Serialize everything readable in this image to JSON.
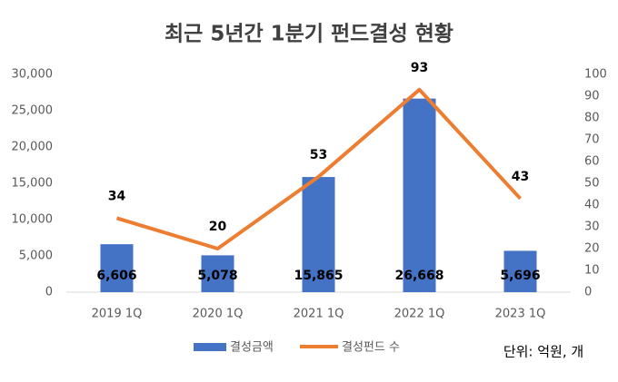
{
  "chart_data": {
    "type": "bar",
    "title": "최근 5년간 1분기 펀드결성 현황",
    "categories": [
      "2019 1Q",
      "2020 1Q",
      "2021 1Q",
      "2022 1Q",
      "2023 1Q"
    ],
    "series": [
      {
        "name": "결성금액",
        "type": "bar",
        "color": "#4472c4",
        "values": [
          6606,
          5078,
          15865,
          26668,
          5696
        ],
        "value_labels": [
          "6,606",
          "5,078",
          "15,865",
          "26,668",
          "5,696"
        ]
      },
      {
        "name": "결성펀드 수",
        "type": "line",
        "axis": "y2",
        "color": "#ed7d31",
        "values": [
          34,
          20,
          53,
          93,
          43
        ]
      }
    ],
    "ylim": [
      0,
      30000
    ],
    "yticks": [
      0,
      {
        "value": 5000,
        "label": "5,000"
      },
      {
        "value": 10000,
        "label": "10,000"
      },
      {
        "value": 15000,
        "label": "15,000"
      },
      {
        "value": 20000,
        "label": "20,000"
      },
      {
        "value": 25000,
        "label": "25,000"
      },
      {
        "value": 30000,
        "label": "30,000"
      }
    ],
    "y2lim": [
      0,
      100
    ],
    "y2ticks": [
      0,
      10,
      20,
      30,
      40,
      50,
      60,
      70,
      80,
      90,
      100
    ],
    "grid": false,
    "legend": "bottom",
    "note": "단위: 억원, 개"
  }
}
